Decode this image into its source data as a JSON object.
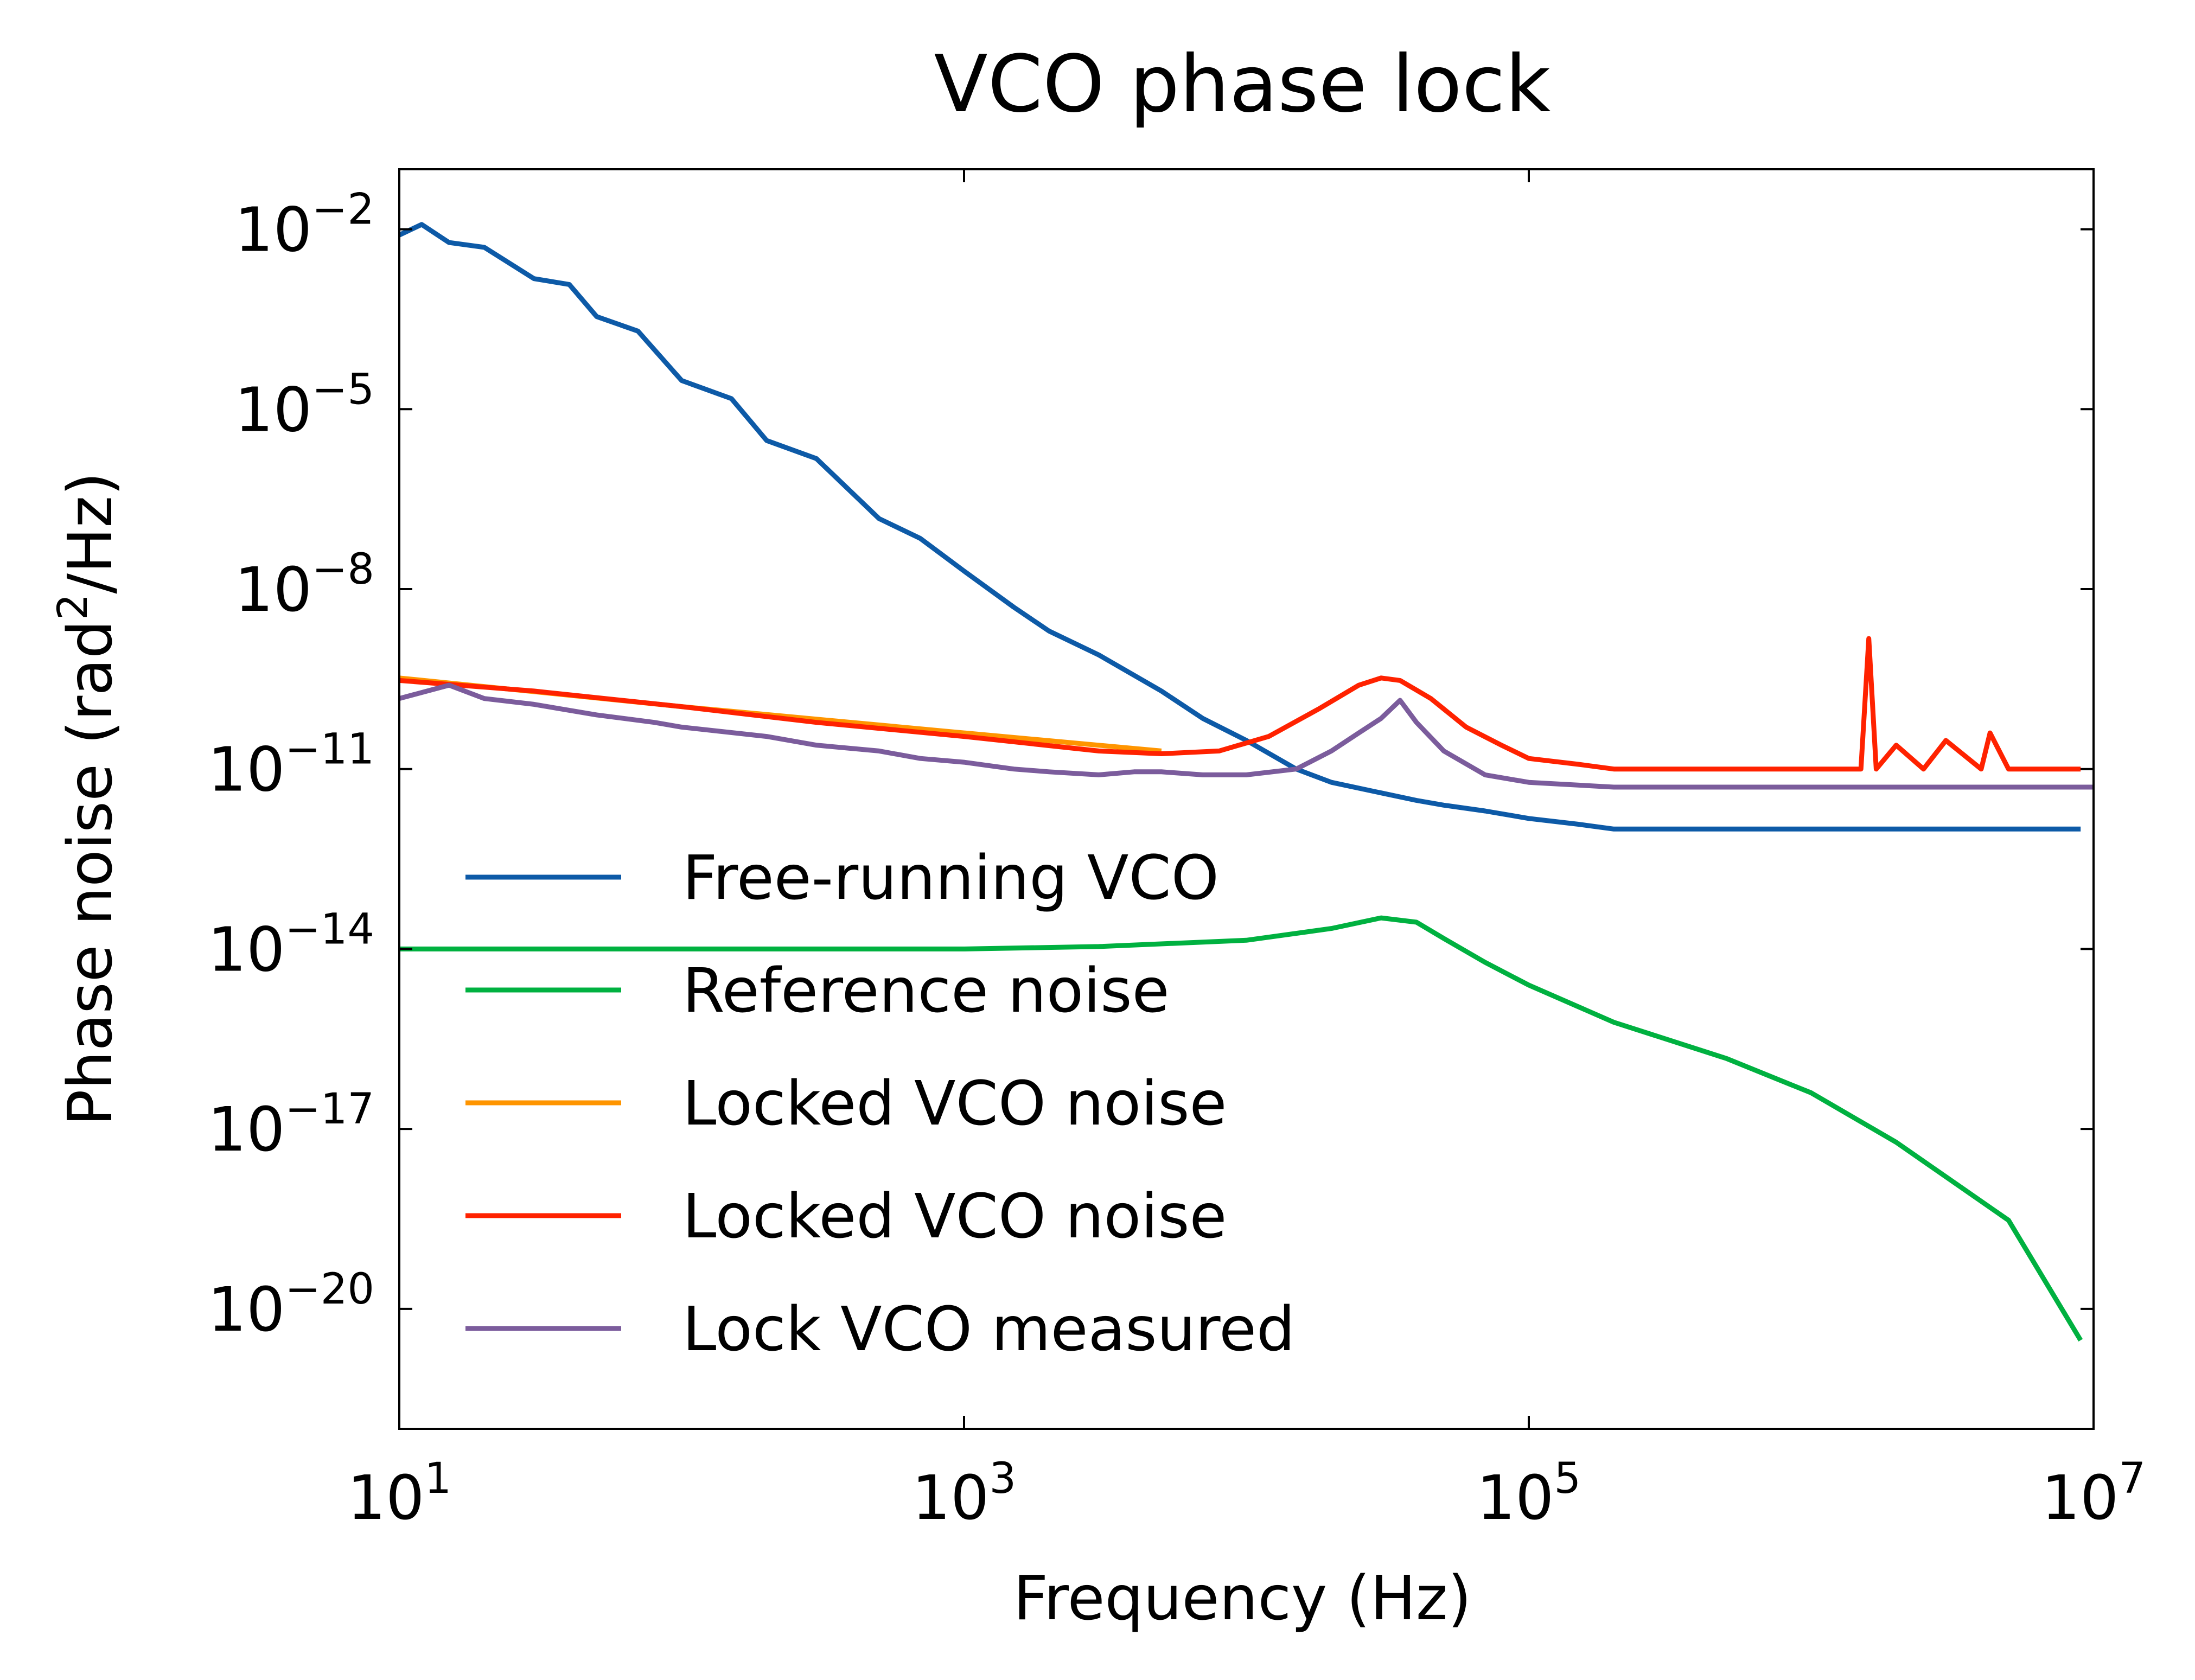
{
  "chart_data": {
    "type": "line",
    "title": "VCO phase lock",
    "xlabel": "Frequency (Hz)",
    "ylabel": "Phase noise (rad²/Hz)",
    "ylabel_parts": {
      "before": "Phase noise (rad",
      "sup": "2",
      "after": "/Hz)"
    },
    "xscale": "log",
    "yscale": "log",
    "xlim": [
      10,
      10000000
    ],
    "ylim": [
      1e-22,
      0.1
    ],
    "x_ticks": [
      {
        "value": 10,
        "base": "10",
        "exp": "1"
      },
      {
        "value": 1000,
        "base": "10",
        "exp": "3"
      },
      {
        "value": 100000,
        "base": "10",
        "exp": "5"
      },
      {
        "value": 10000000,
        "base": "10",
        "exp": "7"
      }
    ],
    "y_ticks": [
      {
        "value": 0.01,
        "base": "10",
        "exp": "−2"
      },
      {
        "value": 1e-05,
        "base": "10",
        "exp": "−5"
      },
      {
        "value": 1e-08,
        "base": "10",
        "exp": "−8"
      },
      {
        "value": 1e-11,
        "base": "10",
        "exp": "−11"
      },
      {
        "value": 1e-14,
        "base": "10",
        "exp": "−14"
      },
      {
        "value": 1e-17,
        "base": "10",
        "exp": "−17"
      },
      {
        "value": 1e-20,
        "base": "10",
        "exp": "−20"
      }
    ],
    "grid": false,
    "legend_position": "lower-left",
    "series": [
      {
        "name": "Free-running VCO",
        "color": "#0d5aa7",
        "x": [
          10,
          12,
          15,
          20,
          30,
          40,
          50,
          70,
          100,
          150,
          200,
          300,
          500,
          700,
          1000,
          1500,
          2000,
          3000,
          5000,
          7000,
          10000,
          15000,
          20000,
          30000,
          40000,
          50000,
          70000,
          100000,
          150000,
          200000,
          300000,
          500000,
          1000000,
          2000000,
          5000000,
          9000000
        ],
        "y": [
          0.008,
          0.012,
          0.006,
          0.005,
          0.0015,
          0.0012,
          0.00035,
          0.0002,
          3e-05,
          1.5e-05,
          3e-06,
          1.5e-06,
          1.5e-07,
          7e-08,
          2e-08,
          5e-09,
          2e-09,
          8e-10,
          2e-10,
          7e-11,
          3e-11,
          1e-11,
          6e-12,
          4e-12,
          3e-12,
          2.5e-12,
          2e-12,
          1.5e-12,
          1.2e-12,
          1e-12,
          1e-12,
          1e-12,
          1e-12,
          1e-12,
          1e-12,
          1e-12
        ]
      },
      {
        "name": "Reference noise",
        "color": "#00b140",
        "x": [
          10,
          100,
          1000,
          3000,
          10000,
          20000,
          30000,
          40000,
          50000,
          70000,
          100000,
          200000,
          500000,
          1000000,
          2000000,
          5000000,
          9000000
        ],
        "y": [
          1e-14,
          1e-14,
          1e-14,
          1.1e-14,
          1.4e-14,
          2.2e-14,
          3.3e-14,
          2.8e-14,
          1.5e-14,
          6e-15,
          2.5e-15,
          6e-16,
          1.5e-16,
          4e-17,
          6e-18,
          3e-19,
          3e-21
        ]
      },
      {
        "name": "Locked VCO noise",
        "color": "#ff9500",
        "x": [
          10,
          100,
          1000,
          5000
        ],
        "y": [
          3.3e-10,
          1.1e-10,
          4e-11,
          2e-11
        ]
      },
      {
        "name": "Locked VCO noise",
        "color": "#ff2200",
        "x": [
          10,
          30,
          100,
          300,
          1000,
          3000,
          5000,
          8000,
          12000,
          18000,
          25000,
          30000,
          35000,
          45000,
          60000,
          80000,
          100000,
          150000,
          200000,
          300000,
          500000,
          1000000,
          1500000,
          1600000,
          1700000,
          2000000,
          2500000,
          3000000,
          4000000,
          4300000,
          5000000,
          7000000,
          9000000
        ],
        "y": [
          3e-10,
          2e-10,
          1.1e-10,
          6e-11,
          3.5e-11,
          2e-11,
          1.8e-11,
          2e-11,
          3.5e-11,
          1e-10,
          2.5e-10,
          3.3e-10,
          3e-10,
          1.5e-10,
          5e-11,
          2.5e-11,
          1.5e-11,
          1.2e-11,
          1e-11,
          1e-11,
          1e-11,
          1e-11,
          1e-11,
          1.5e-09,
          1e-11,
          2.5e-11,
          1e-11,
          3e-11,
          1e-11,
          4e-11,
          1e-11,
          1e-11,
          1e-11
        ]
      },
      {
        "name": "Lock VCO measured",
        "color": "#7b5c9c",
        "x": [
          10,
          15,
          20,
          30,
          50,
          80,
          100,
          200,
          300,
          500,
          700,
          1000,
          1500,
          2000,
          3000,
          4000,
          5000,
          7000,
          10000,
          15000,
          20000,
          25000,
          30000,
          35000,
          40000,
          50000,
          70000,
          100000,
          200000,
          500000,
          1000000,
          2000000,
          5000000,
          10000000
        ],
        "y": [
          1.5e-10,
          2.5e-10,
          1.5e-10,
          1.2e-10,
          8e-11,
          6e-11,
          5e-11,
          3.5e-11,
          2.5e-11,
          2e-11,
          1.5e-11,
          1.3e-11,
          1e-11,
          9e-12,
          8e-12,
          9e-12,
          9e-12,
          8e-12,
          8e-12,
          1e-11,
          2e-11,
          4e-11,
          7e-11,
          1.4e-10,
          6e-11,
          2e-11,
          8e-12,
          6e-12,
          5e-12,
          5e-12,
          5e-12,
          5e-12,
          5e-12,
          5e-12
        ]
      }
    ]
  }
}
